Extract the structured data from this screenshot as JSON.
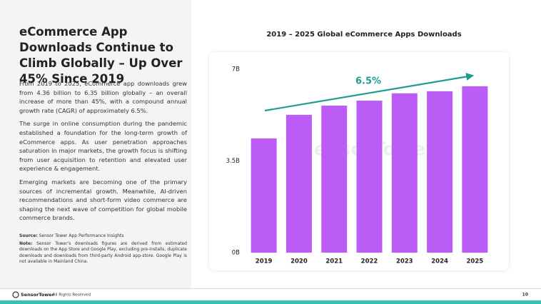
{
  "header": {
    "title": "eCommerce App Downloads Continue to Climb Globally – Up Over 45% Since 2019"
  },
  "body": {
    "paragraphs": [
      "From 2019 to 2025, eCommerce app downloads grew from 4.36 billion to 6.35 billion globally – an overall increase of more than 45%, with a compound annual growth rate (CAGR) of approximately 6.5%.",
      "The surge in online consumption during the pandemic established a foundation for the long-term growth of eCommerce apps. As user penetration approaches saturation in major markets, the growth focus is shifting from user acquisition to retention and elevated user experience & engagement.",
      "Emerging markets are becoming one of the primary sources of incremental growth. Meanwhile, AI-driven recommendations and short-form video commerce are shaping the next wave of competition for global mobile commerce brands."
    ],
    "source_label": "Source:",
    "source": "Sensor Tower App Performance Insights",
    "note_label": "Note:",
    "note": "Sensor Tower's downloads figures are derived from estimated downloads on the App Store and Google Play, excluding pre-installs, duplicate downloads and downloads from third-party Android app-store. Google Play is not available in Mainland China."
  },
  "footer": {
    "brand": "SensorTower",
    "rights": "- All Rights Reserved",
    "page": "10"
  },
  "chart_data": {
    "type": "bar",
    "title": "2019 – 2025 Global eCommerce Apps Downloads",
    "categories": [
      "2019",
      "2020",
      "2021",
      "2022",
      "2023",
      "2024",
      "2025"
    ],
    "values": [
      4.36,
      5.26,
      5.61,
      5.8,
      6.08,
      6.16,
      6.35
    ],
    "color": "#bb5cf6",
    "ylim": [
      0,
      7
    ],
    "yticks": [
      {
        "value": 0,
        "label": "0B"
      },
      {
        "value": 3.5,
        "label": "3.5B"
      },
      {
        "value": 7,
        "label": "7B"
      }
    ],
    "annotation": "6.5%",
    "watermark": "SensorTower"
  }
}
